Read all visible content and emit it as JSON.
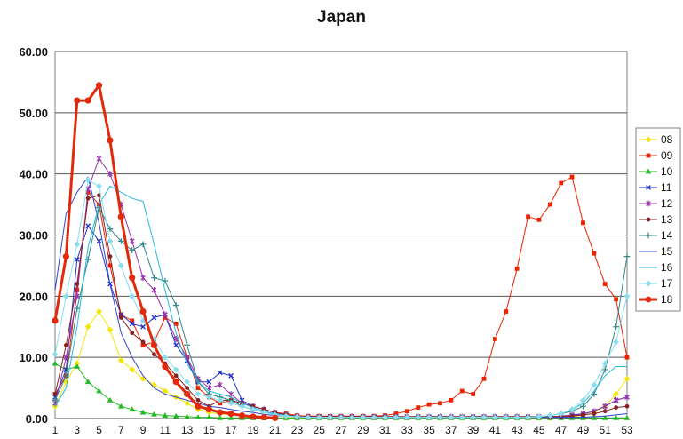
{
  "chart_data": {
    "type": "line",
    "title": "Japan",
    "xlabel": "",
    "ylabel": "",
    "ylim": [
      0,
      60
    ],
    "yticks": [
      "0.00",
      "10.00",
      "20.00",
      "30.00",
      "40.00",
      "50.00",
      "60.00"
    ],
    "x": [
      1,
      2,
      3,
      4,
      5,
      6,
      7,
      8,
      9,
      10,
      11,
      12,
      13,
      14,
      15,
      16,
      17,
      18,
      19,
      20,
      21,
      22,
      23,
      24,
      25,
      26,
      27,
      28,
      29,
      30,
      31,
      32,
      33,
      34,
      35,
      36,
      37,
      38,
      39,
      40,
      41,
      42,
      43,
      44,
      45,
      46,
      47,
      48,
      49,
      50,
      51,
      52,
      53
    ],
    "xticks": [
      1,
      3,
      5,
      7,
      9,
      11,
      13,
      15,
      17,
      19,
      21,
      23,
      25,
      27,
      29,
      31,
      33,
      35,
      37,
      39,
      41,
      43,
      45,
      47,
      49,
      51,
      53
    ],
    "grid": true,
    "legend_position": "right",
    "series": [
      {
        "name": "08",
        "color": "#f2e600",
        "marker": "diamond",
        "width": 1,
        "values": [
          2.0,
          6.0,
          9.0,
          15.0,
          17.5,
          14.5,
          9.5,
          8.0,
          6.5,
          5.5,
          4.5,
          3.5,
          2.5,
          1.5,
          1.0,
          0.8,
          0.6,
          0.5,
          0.3,
          0.2,
          0.1,
          0.1,
          0.1,
          0.1,
          0.1,
          0.1,
          0.1,
          0.1,
          0.1,
          0.1,
          0.1,
          0.1,
          0.1,
          0.1,
          0.1,
          0.1,
          0.1,
          0.1,
          0.1,
          0.1,
          0.1,
          0.1,
          0.1,
          0.1,
          0.1,
          0.1,
          0.2,
          0.3,
          0.5,
          1.0,
          2.0,
          4.0,
          6.5
        ]
      },
      {
        "name": "09",
        "color": "#ee2200",
        "marker": "square",
        "width": 1,
        "values": [
          4.0,
          7.0,
          21.0,
          37.0,
          35.0,
          25.0,
          17.0,
          16.0,
          12.0,
          12.5,
          16.5,
          15.5,
          10.0,
          5.0,
          3.5,
          2.5,
          3.0,
          2.5,
          2.0,
          1.5,
          1.0,
          0.8,
          0.5,
          0.4,
          0.4,
          0.4,
          0.4,
          0.4,
          0.4,
          0.4,
          0.5,
          0.8,
          1.2,
          1.8,
          2.3,
          2.5,
          3.0,
          4.5,
          4.0,
          6.5,
          13.0,
          17.5,
          24.5,
          33.0,
          32.5,
          35.0,
          38.5,
          39.5,
          32.0,
          27.0,
          22.0,
          19.5,
          10.0
        ]
      },
      {
        "name": "10",
        "color": "#22bb22",
        "marker": "triangle",
        "width": 1,
        "values": [
          9.0,
          8.0,
          8.5,
          6.0,
          4.5,
          3.0,
          2.0,
          1.5,
          1.0,
          0.7,
          0.5,
          0.4,
          0.3,
          0.2,
          0.2,
          0.1,
          0.1,
          0.1,
          0.1,
          0.1,
          0.1,
          0.1,
          0.1,
          0.1,
          0.1,
          0.1,
          0.1,
          0.1,
          0.1,
          0.1,
          0.1,
          0.1,
          0.1,
          0.1,
          0.1,
          0.1,
          0.1,
          0.1,
          0.1,
          0.1,
          0.1,
          0.1,
          0.1,
          0.1,
          0.1,
          0.1,
          0.1,
          0.1,
          0.1,
          0.1,
          0.1,
          0.1,
          0.1
        ]
      },
      {
        "name": "11",
        "color": "#2233cc",
        "marker": "x",
        "width": 1,
        "values": [
          3.5,
          8.0,
          26.0,
          31.5,
          29.0,
          22.0,
          17.0,
          15.5,
          15.0,
          16.5,
          17.0,
          12.0,
          9.5,
          6.0,
          6.0,
          7.5,
          7.0,
          3.0,
          2.0,
          1.5,
          1.0,
          0.6,
          0.4,
          0.3,
          0.3,
          0.3,
          0.3,
          0.3,
          0.3,
          0.3,
          0.3,
          0.3,
          0.3,
          0.3,
          0.3,
          0.3,
          0.3,
          0.3,
          0.3,
          0.3,
          0.3,
          0.3,
          0.3,
          0.3,
          0.3,
          0.3,
          0.4,
          0.5,
          0.7,
          1.2,
          2.0,
          3.0,
          3.5
        ]
      },
      {
        "name": "12",
        "color": "#9933aa",
        "marker": "star",
        "width": 1,
        "values": [
          2.5,
          10.0,
          20.0,
          37.5,
          42.5,
          40.0,
          35.0,
          29.0,
          23.0,
          21.0,
          17.0,
          13.0,
          10.0,
          6.5,
          5.0,
          5.5,
          4.0,
          2.5,
          2.0,
          1.5,
          1.0,
          0.6,
          0.4,
          0.3,
          0.3,
          0.3,
          0.3,
          0.3,
          0.3,
          0.3,
          0.3,
          0.3,
          0.3,
          0.3,
          0.3,
          0.3,
          0.3,
          0.3,
          0.3,
          0.3,
          0.3,
          0.3,
          0.3,
          0.3,
          0.3,
          0.3,
          0.4,
          0.6,
          0.8,
          1.2,
          2.0,
          3.0,
          3.5
        ]
      },
      {
        "name": "13",
        "color": "#882222",
        "marker": "circle",
        "width": 1,
        "values": [
          4.0,
          12.0,
          22.0,
          36.0,
          36.5,
          26.5,
          16.5,
          14.0,
          12.5,
          10.5,
          9.0,
          7.0,
          5.0,
          3.0,
          2.0,
          3.0,
          3.0,
          2.5,
          2.0,
          1.5,
          1.0,
          0.6,
          0.4,
          0.3,
          0.3,
          0.3,
          0.3,
          0.3,
          0.3,
          0.3,
          0.3,
          0.3,
          0.3,
          0.3,
          0.3,
          0.3,
          0.3,
          0.3,
          0.3,
          0.3,
          0.3,
          0.3,
          0.3,
          0.3,
          0.3,
          0.3,
          0.3,
          0.4,
          0.6,
          0.8,
          1.2,
          1.8,
          2.0
        ]
      },
      {
        "name": "14",
        "color": "#338888",
        "marker": "plus",
        "width": 1,
        "values": [
          3.0,
          7.0,
          18.0,
          26.0,
          34.5,
          31.0,
          29.0,
          27.5,
          28.5,
          23.0,
          22.5,
          18.5,
          12.0,
          6.0,
          4.0,
          3.5,
          3.0,
          2.0,
          1.5,
          1.0,
          0.7,
          0.5,
          0.3,
          0.2,
          0.2,
          0.2,
          0.2,
          0.2,
          0.2,
          0.2,
          0.2,
          0.2,
          0.2,
          0.2,
          0.2,
          0.2,
          0.2,
          0.2,
          0.2,
          0.2,
          0.2,
          0.2,
          0.2,
          0.2,
          0.3,
          0.5,
          0.8,
          1.2,
          2.0,
          4.0,
          8.0,
          15.0,
          26.5
        ]
      },
      {
        "name": "15",
        "color": "#3344cc",
        "marker": "none",
        "width": 1,
        "values": [
          21.0,
          33.5,
          37.0,
          39.5,
          32.0,
          22.0,
          14.0,
          10.0,
          7.0,
          5.0,
          4.0,
          3.5,
          3.0,
          2.5,
          2.0,
          1.8,
          1.5,
          1.2,
          1.0,
          0.7,
          0.5,
          0.4,
          0.3,
          0.2,
          0.2,
          0.2,
          0.2,
          0.2,
          0.2,
          0.2,
          0.2,
          0.2,
          0.2,
          0.2,
          0.2,
          0.2,
          0.2,
          0.2,
          0.2,
          0.2,
          0.2,
          0.2,
          0.2,
          0.2,
          0.2,
          0.2,
          0.2,
          0.2,
          0.2,
          0.3,
          0.4,
          0.6,
          0.8
        ]
      },
      {
        "name": "16",
        "color": "#22bbdd",
        "marker": "none",
        "width": 1,
        "values": [
          2.0,
          5.0,
          15.0,
          28.0,
          35.0,
          38.0,
          37.0,
          36.0,
          35.5,
          28.5,
          21.0,
          14.0,
          9.0,
          6.0,
          4.5,
          4.0,
          3.5,
          2.5,
          1.8,
          1.2,
          0.8,
          0.5,
          0.3,
          0.2,
          0.2,
          0.2,
          0.2,
          0.2,
          0.2,
          0.2,
          0.2,
          0.2,
          0.2,
          0.2,
          0.2,
          0.2,
          0.2,
          0.2,
          0.2,
          0.2,
          0.2,
          0.2,
          0.2,
          0.2,
          0.3,
          0.5,
          0.8,
          1.5,
          2.5,
          4.5,
          7.0,
          8.5,
          8.5
        ]
      },
      {
        "name": "17",
        "color": "#88ddee",
        "marker": "diamond",
        "width": 1,
        "values": [
          10.5,
          20.0,
          28.5,
          39.0,
          38.0,
          29.0,
          25.0,
          20.0,
          16.0,
          13.0,
          10.0,
          8.0,
          6.0,
          4.0,
          3.5,
          3.0,
          2.5,
          2.0,
          1.5,
          1.0,
          0.6,
          0.4,
          0.3,
          0.2,
          0.2,
          0.2,
          0.2,
          0.2,
          0.2,
          0.2,
          0.2,
          0.2,
          0.2,
          0.2,
          0.2,
          0.2,
          0.2,
          0.2,
          0.2,
          0.2,
          0.2,
          0.2,
          0.2,
          0.2,
          0.3,
          0.5,
          0.8,
          1.5,
          3.0,
          5.5,
          9.0,
          12.5,
          20.0
        ]
      },
      {
        "name": "18",
        "color": "#e02a0a",
        "marker": "circle",
        "width": 3,
        "values": [
          16.0,
          26.5,
          52.0,
          52.0,
          54.5,
          45.5,
          33.0,
          23.0,
          17.5,
          12.0,
          8.5,
          6.0,
          4.0,
          2.0,
          1.5,
          1.0,
          0.8,
          0.5,
          0.3,
          0.2,
          0.1,
          null,
          null,
          null,
          null,
          null,
          null,
          null,
          null,
          null,
          null,
          null,
          null,
          null,
          null,
          null,
          null,
          null,
          null,
          null,
          null,
          null,
          null,
          null,
          null,
          null,
          null,
          null,
          null,
          null,
          null,
          null,
          null
        ]
      }
    ]
  }
}
